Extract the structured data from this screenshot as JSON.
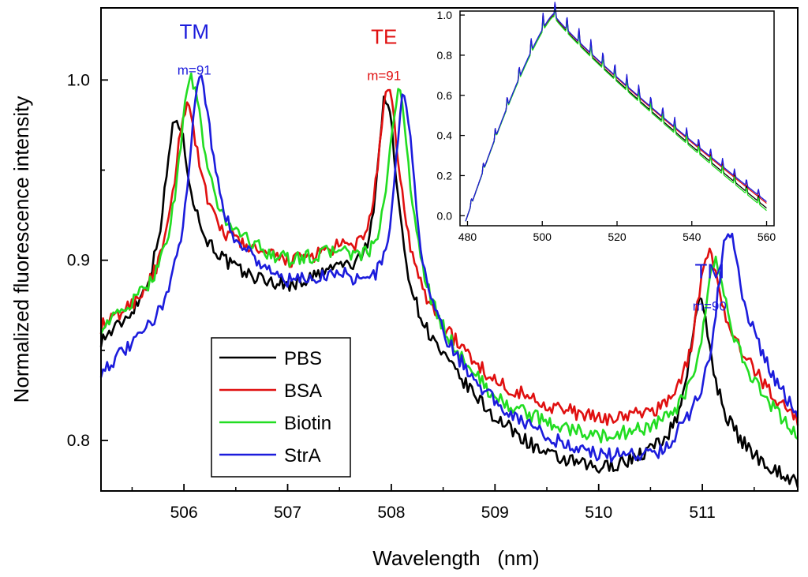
{
  "chart_data": {
    "type": "line",
    "xlabel": "Wavelength   (nm)",
    "ylabel": "Normalized fluorescence intensity",
    "xlim": [
      505.2,
      511.92
    ],
    "ylim": [
      0.772,
      1.04
    ],
    "xticks": [
      506,
      507,
      508,
      509,
      510,
      511
    ],
    "yticks": [
      0.8,
      0.9,
      1.0
    ],
    "tick_labels_x": [
      "506",
      "507",
      "508",
      "509",
      "510",
      "511"
    ],
    "tick_labels_y": [
      "0.8",
      "0.9",
      "1.0"
    ],
    "legend": {
      "placement": "lower-left",
      "entries": [
        "PBS",
        "BSA",
        "Biotin",
        "StrA"
      ]
    },
    "annotations": [
      {
        "id": "tm91",
        "text": "TM",
        "sub": "m=91",
        "color": "#1c1cdc",
        "x": 506.1,
        "y": 1.023,
        "sub_y": 1.003
      },
      {
        "id": "te91",
        "text": "TE",
        "sub": "m=91",
        "color": "#e01010",
        "x": 507.93,
        "y": 1.02,
        "sub_y": 1.0
      },
      {
        "id": "tm90",
        "text": "TM",
        "sub": "m=90",
        "color": "#1c1cdc",
        "x": 511.07,
        "y": 0.89,
        "sub_y": 0.872
      }
    ],
    "series": [
      {
        "name": "PBS",
        "color": "#000000",
        "peaks": [
          [
            505.92,
            0.978,
            0.14
          ],
          [
            507.95,
            0.99,
            0.11
          ],
          [
            510.97,
            0.876,
            0.13
          ]
        ],
        "base": [
          [
            505.2,
            0.852
          ],
          [
            506.3,
            0.888
          ],
          [
            507.0,
            0.882
          ],
          [
            507.5,
            0.89
          ],
          [
            508.4,
            0.845
          ],
          [
            509.0,
            0.81
          ],
          [
            509.5,
            0.79
          ],
          [
            510.0,
            0.782
          ],
          [
            510.6,
            0.79
          ],
          [
            511.3,
            0.79
          ],
          [
            511.92,
            0.774
          ]
        ]
      },
      {
        "name": "BSA",
        "color": "#e01010",
        "peaks": [
          [
            506.02,
            0.985,
            0.14
          ],
          [
            507.97,
            0.993,
            0.12
          ],
          [
            511.05,
            0.905,
            0.13
          ]
        ],
        "base": [
          [
            505.2,
            0.86
          ],
          [
            506.5,
            0.9
          ],
          [
            507.0,
            0.895
          ],
          [
            507.5,
            0.9
          ],
          [
            508.4,
            0.86
          ],
          [
            509.0,
            0.83
          ],
          [
            509.5,
            0.818
          ],
          [
            510.0,
            0.81
          ],
          [
            510.6,
            0.812
          ],
          [
            511.4,
            0.835
          ],
          [
            511.92,
            0.808
          ]
        ]
      },
      {
        "name": "Biotin",
        "color": "#22dd22",
        "peaks": [
          [
            506.06,
            1.0,
            0.14
          ],
          [
            508.07,
            0.992,
            0.12
          ],
          [
            511.12,
            0.898,
            0.13
          ]
        ],
        "base": [
          [
            505.2,
            0.86
          ],
          [
            506.5,
            0.902
          ],
          [
            507.0,
            0.895
          ],
          [
            507.5,
            0.9
          ],
          [
            508.4,
            0.855
          ],
          [
            509.0,
            0.82
          ],
          [
            509.5,
            0.808
          ],
          [
            510.0,
            0.8
          ],
          [
            510.6,
            0.805
          ],
          [
            511.4,
            0.825
          ],
          [
            511.92,
            0.8
          ]
        ]
      },
      {
        "name": "StrA",
        "color": "#1c1cdc",
        "peaks": [
          [
            506.15,
            1.0,
            0.14
          ],
          [
            508.12,
            0.99,
            0.11
          ],
          [
            511.24,
            0.916,
            0.13
          ]
        ],
        "base": [
          [
            505.2,
            0.836
          ],
          [
            506.6,
            0.89
          ],
          [
            507.0,
            0.882
          ],
          [
            507.5,
            0.888
          ],
          [
            508.4,
            0.85
          ],
          [
            509.0,
            0.818
          ],
          [
            509.5,
            0.8
          ],
          [
            510.0,
            0.79
          ],
          [
            510.6,
            0.79
          ],
          [
            511.5,
            0.835
          ],
          [
            511.92,
            0.81
          ]
        ]
      }
    ],
    "inset": {
      "type": "line",
      "xlim": [
        478,
        562
      ],
      "ylim": [
        -0.05,
        1.02
      ],
      "xticks": [
        480,
        500,
        520,
        540,
        560
      ],
      "yticks": [
        0.0,
        0.2,
        0.4,
        0.6,
        0.8,
        1.0
      ],
      "tick_labels_x": [
        "480",
        "500",
        "520",
        "540",
        "560"
      ],
      "tick_labels_y": [
        "0.0",
        "0.2",
        "0.4",
        "0.6",
        "0.8",
        "1.0"
      ],
      "colors": [
        "#000000",
        "#e01010",
        "#22dd22",
        "#1c1cdc"
      ]
    }
  }
}
